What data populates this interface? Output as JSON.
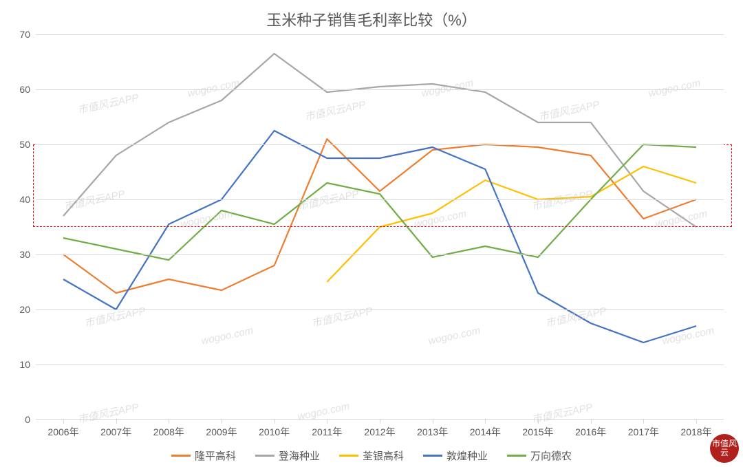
{
  "title": "玉米种子销售毛利率比较（%）",
  "chart": {
    "type": "line",
    "background_color": "#ffffff",
    "grid_color": "#d9d9d9",
    "text_color": "#595959",
    "title_fontsize": 22,
    "label_fontsize": 14,
    "line_width": 2.2,
    "ylim": [
      0,
      70
    ],
    "ytick_step": 10,
    "yticks": [
      0,
      10,
      20,
      30,
      40,
      50,
      60,
      70
    ],
    "categories": [
      "2006年",
      "2007年",
      "2008年",
      "2009年",
      "2010年",
      "2011年",
      "2012年",
      "2013年",
      "2014年",
      "2015年",
      "2016年",
      "2017年",
      "2018年"
    ],
    "series": [
      {
        "name": "隆平高科",
        "color": "#ed7d31",
        "values": [
          30,
          23,
          25.5,
          23.5,
          28,
          51,
          41.5,
          49,
          50,
          49.5,
          48,
          36.5,
          40
        ]
      },
      {
        "name": "登海种业",
        "color": "#a6a6a6",
        "values": [
          37,
          48,
          54,
          58,
          66.5,
          59.5,
          60.5,
          61,
          59.5,
          54,
          54,
          41.5,
          35
        ]
      },
      {
        "name": "荃银高科",
        "color": "#ffc000",
        "values": [
          null,
          null,
          null,
          null,
          null,
          25,
          35,
          37.5,
          43.5,
          40,
          40.5,
          46,
          43
        ]
      },
      {
        "name": "敦煌种业",
        "color": "#4472c4",
        "values": [
          25.5,
          20,
          35.5,
          40,
          52.5,
          47.5,
          47.5,
          49.5,
          45.5,
          23,
          17.5,
          14,
          17
        ]
      },
      {
        "name": "万向德农",
        "color": "#70ad47",
        "values": [
          33,
          31,
          29,
          38,
          35.5,
          43,
          41,
          29.5,
          31.5,
          29.5,
          40,
          50,
          49.5
        ]
      }
    ],
    "highlight_box": {
      "y_min": 35,
      "y_max": 50,
      "border_color": "#ff0000"
    },
    "watermark_text_a": "市值风云APP",
    "watermark_text_b": "wogoo.com",
    "corner_stamp_text": "市值风云"
  },
  "legend_labels": {
    "s0": "隆平高科",
    "s1": "登海种业",
    "s2": "荃银高科",
    "s3": "敦煌种业",
    "s4": "万向德农"
  }
}
